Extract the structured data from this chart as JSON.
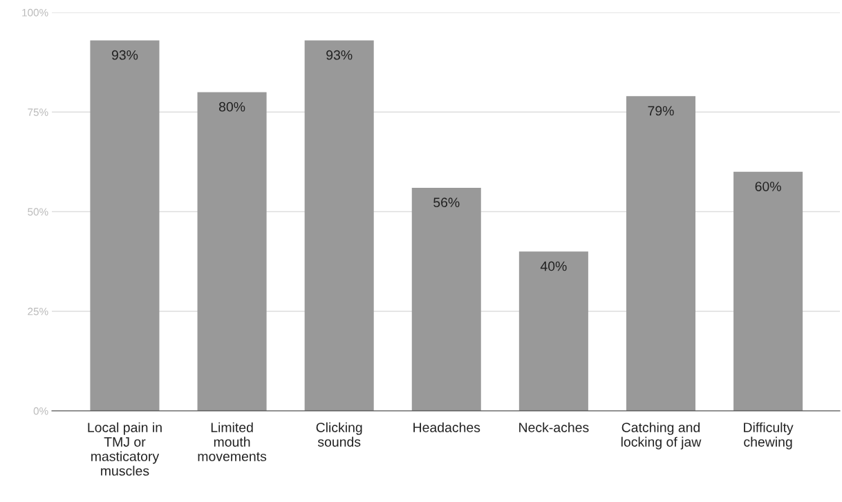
{
  "chart_data": {
    "type": "bar",
    "categories": [
      "Local pain in\nTMJ or\nmasticatory\nmuscles",
      "Limited\nmouth\nmovements",
      "Clicking\nsounds",
      "Headaches",
      "Neck-aches",
      "Catching and\nlocking of jaw",
      "Difficulty\nchewing"
    ],
    "values": [
      93,
      80,
      93,
      56,
      40,
      79,
      60
    ],
    "value_labels": [
      "93%",
      "80%",
      "93%",
      "56%",
      "40%",
      "79%",
      "60%"
    ],
    "color": "#999999",
    "ylim": [
      0,
      100
    ],
    "yticks": [
      {
        "value": 0,
        "label": "0%"
      },
      {
        "value": 25,
        "label": "25%"
      },
      {
        "value": 50,
        "label": "50%"
      },
      {
        "value": 75,
        "label": "75%"
      },
      {
        "value": 100,
        "label": "100%"
      }
    ],
    "grid": "y",
    "legend": false
  }
}
